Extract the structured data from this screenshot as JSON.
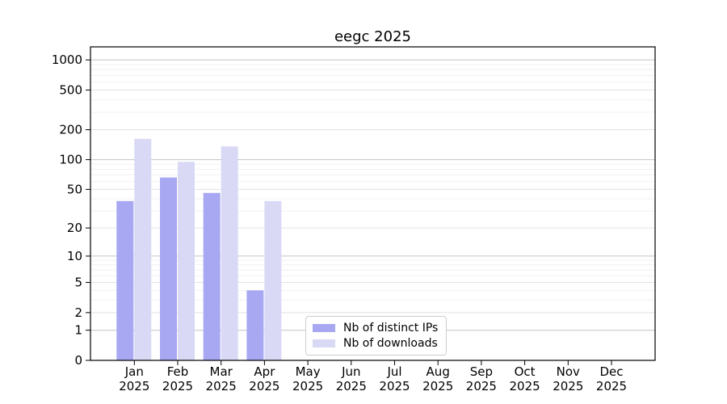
{
  "chart_data": {
    "type": "bar",
    "title": "eegc 2025",
    "categories": [
      "Jan",
      "Feb",
      "Mar",
      "Apr",
      "May",
      "Jun",
      "Jul",
      "Aug",
      "Sep",
      "Oct",
      "Nov",
      "Dec"
    ],
    "x_tick_year": "2025",
    "series": [
      {
        "name": "Nb of distinct IPs",
        "color": "#a8a8f2",
        "values": [
          38,
          66,
          46,
          4,
          null,
          null,
          null,
          null,
          null,
          null,
          null,
          null
        ]
      },
      {
        "name": "Nb of downloads",
        "color": "#d9d9f6",
        "values": [
          162,
          95,
          136,
          38,
          null,
          null,
          null,
          null,
          null,
          null,
          null,
          null
        ]
      }
    ],
    "yscale": "log1p",
    "ylim": [
      0,
      1350
    ],
    "y_ticks": [
      0,
      1,
      2,
      5,
      10,
      20,
      50,
      100,
      200,
      500,
      1000
    ],
    "y_major_ticks": [
      1,
      10,
      100,
      1000
    ],
    "y_minor_ticks": [
      3,
      4,
      6,
      7,
      8,
      9,
      30,
      40,
      60,
      70,
      80,
      90,
      300,
      400,
      600,
      700,
      800,
      900
    ],
    "grid": true,
    "legend_position": "lower center",
    "colors": {
      "spine": "#000000",
      "grid_major": "#c3c3c3",
      "grid_labeled": "#e2e2e2",
      "grid_minor": "#f1f1f1"
    }
  }
}
